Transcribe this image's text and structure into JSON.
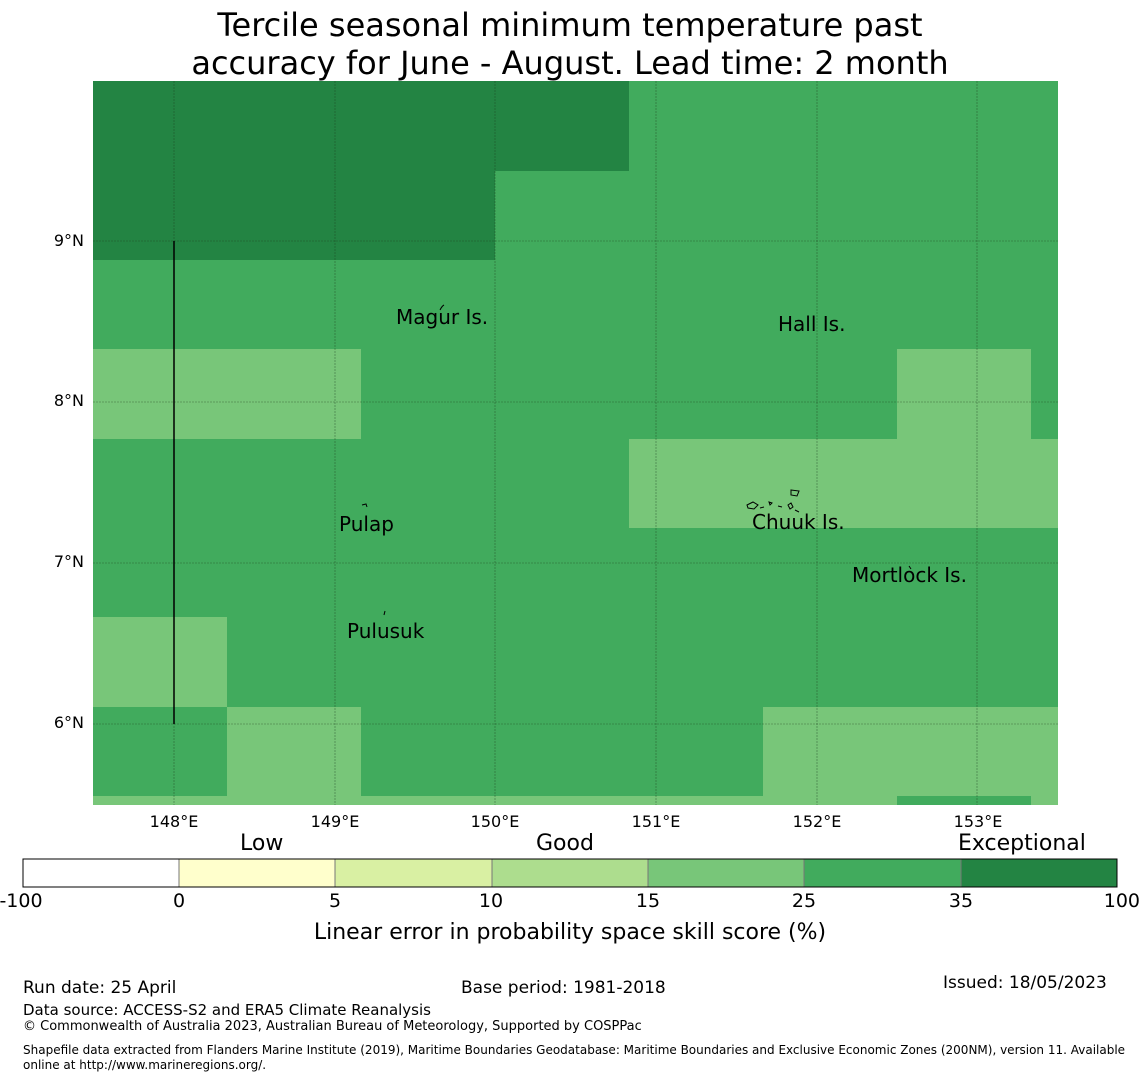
{
  "title": {
    "line1": "Tercile seasonal minimum temperature past",
    "line2": "accuracy for June - August. Lead time: 2 month"
  },
  "map": {
    "x_ticks": [
      "148°E",
      "149°E",
      "150°E",
      "151°E",
      "152°E",
      "153°E"
    ],
    "y_ticks": [
      "9°N",
      "8°N",
      "7°N",
      "6°N"
    ],
    "place_labels": [
      "Magur Is.",
      "Hall Is.",
      "Pulap",
      "Chuuk Is.",
      "Mortlock Is.",
      "Pulusuk"
    ],
    "category_colors": {
      "15-25": "#78c679",
      "25-35": "#41ab5d",
      "35-100": "#238443"
    }
  },
  "colorbar": {
    "category_labels": [
      "Low",
      "Good",
      "Exceptional"
    ],
    "ticks": [
      "-100",
      "0",
      "5",
      "10",
      "15",
      "25",
      "35",
      "100"
    ],
    "colors": [
      "#ffffff",
      "#ffffcc",
      "#d9f0a3",
      "#addd8e",
      "#78c679",
      "#41ab5d",
      "#238443"
    ],
    "label": "Linear error in probability space skill score (%)"
  },
  "footer": {
    "run_date": "Run date: 25 April",
    "base_period": "Base period: 1981-2018",
    "issued": "Issued: 18/05/2023",
    "data_source": "Data source: ACCESS-S2 and ERA5 Climate Reanalysis",
    "copyright": "© Commonwealth of Australia 2023, Australian Bureau of Meteorology, Supported by COSPPac",
    "shapefile_line1": "Shapefile data extracted from Flanders Marine Institute (2019), Maritime Boundaries Geodatabase: Maritime Boundaries and Exclusive Economic Zones (200NM), version 11. Available",
    "shapefile_line2": "online at http://www.marineregions.org/."
  }
}
